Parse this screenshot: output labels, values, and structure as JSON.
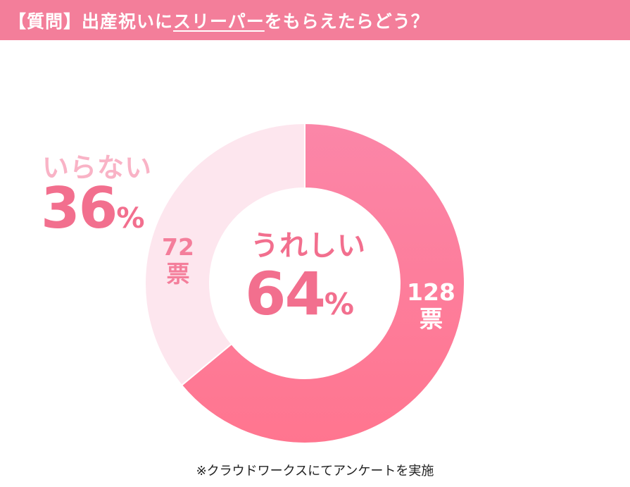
{
  "header": {
    "title_prefix": "【質問】出産祝いに",
    "title_highlight": "スリーパー",
    "title_suffix": "をもらえたらどう？"
  },
  "chart_data": {
    "type": "pie",
    "donut": true,
    "categories": [
      "うれしい",
      "いらない"
    ],
    "values": [
      128,
      72
    ],
    "percentages": [
      64,
      36
    ],
    "colors": [
      "#fb84a5",
      "#fde6ee"
    ],
    "vote_unit": "票",
    "percent_symbol": "%"
  },
  "labels": {
    "center_category": "うれしい",
    "center_percent": "64",
    "outer_category": "いらない",
    "outer_percent": "36",
    "votes_a_count": "128",
    "votes_b_count": "72"
  },
  "footer": {
    "note": "※クラウドワークスにてアンケートを実施"
  }
}
